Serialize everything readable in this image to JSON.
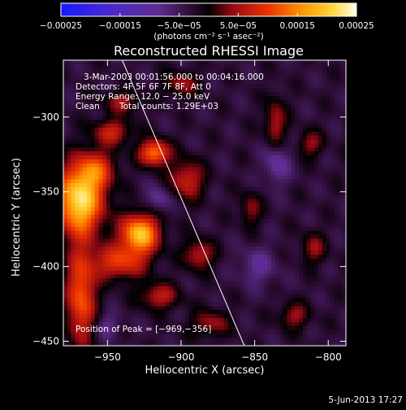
{
  "chart_data": {
    "type": "heatmap",
    "title": "Reconstructed RHESSI Image",
    "xlabel": "Heliocentric X (arcsec)",
    "ylabel": "Heliocentric Y (arcsec)",
    "xlim": [
      -980,
      -788
    ],
    "ylim": [
      -453,
      -262
    ],
    "xticks": [
      {
        "value": -950,
        "label": "−950"
      },
      {
        "value": -900,
        "label": "−900"
      },
      {
        "value": -850,
        "label": "−850"
      },
      {
        "value": -800,
        "label": "−800"
      }
    ],
    "yticks": [
      {
        "value": -300,
        "label": "−300"
      },
      {
        "value": -350,
        "label": "−350"
      },
      {
        "value": -400,
        "label": "−400"
      },
      {
        "value": -450,
        "label": "−450"
      }
    ],
    "colorbar": {
      "range": [
        -0.00025,
        0.00025
      ],
      "ticks": [
        {
          "value": -0.00025,
          "label": "−0.00025"
        },
        {
          "value": -0.00015,
          "label": "−0.00015"
        },
        {
          "value": -5e-05,
          "label": "−5.0e−05"
        },
        {
          "value": 5e-05,
          "label": "5.0e−05"
        },
        {
          "value": 0.00015,
          "label": "0.00015"
        },
        {
          "value": 0.00025,
          "label": "0.00025"
        }
      ],
      "unit_label": "(photons cm⁻² s⁻¹ asec⁻²)"
    },
    "limb_line": [
      [
        -940,
        -262
      ],
      [
        -857,
        -453
      ]
    ],
    "peak": {
      "x": -969,
      "y": -356
    },
    "blobs": [
      {
        "x": -969,
        "y": -356,
        "sx": 11,
        "sy": 16,
        "a": 1.0
      },
      {
        "x": -958,
        "y": -335,
        "sx": 9,
        "sy": 9,
        "a": 0.45
      },
      {
        "x": -928,
        "y": -378,
        "sx": 9,
        "sy": 9,
        "a": 0.9
      },
      {
        "x": -947,
        "y": -310,
        "sx": 9,
        "sy": 6,
        "a": 0.4
      },
      {
        "x": -918,
        "y": -324,
        "sx": 7,
        "sy": 6,
        "a": 0.7
      },
      {
        "x": -942,
        "y": -397,
        "sx": 13,
        "sy": 8,
        "a": 0.5
      },
      {
        "x": -968,
        "y": -420,
        "sx": 7,
        "sy": 22,
        "a": 0.6
      },
      {
        "x": -915,
        "y": -420,
        "sx": 9,
        "sy": 6,
        "a": 0.38
      },
      {
        "x": -896,
        "y": -342,
        "sx": 8,
        "sy": 9,
        "a": 0.42
      },
      {
        "x": -888,
        "y": -392,
        "sx": 7,
        "sy": 7,
        "a": 0.38
      },
      {
        "x": -880,
        "y": -438,
        "sx": 9,
        "sy": 6,
        "a": 0.3
      },
      {
        "x": -836,
        "y": -305,
        "sx": 5,
        "sy": 12,
        "a": 0.35
      },
      {
        "x": -812,
        "y": -318,
        "sx": 6,
        "sy": 6,
        "a": 0.28
      },
      {
        "x": -810,
        "y": -388,
        "sx": 6,
        "sy": 7,
        "a": 0.28
      },
      {
        "x": -823,
        "y": -433,
        "sx": 7,
        "sy": 6,
        "a": 0.3
      },
      {
        "x": -853,
        "y": -362,
        "sx": 5,
        "sy": 8,
        "a": 0.27
      },
      {
        "x": -900,
        "y": -278,
        "sx": 8,
        "sy": 6,
        "a": 0.3
      },
      {
        "x": -940,
        "y": -290,
        "sx": 8,
        "sy": 5,
        "a": 0.32
      },
      {
        "x": -835,
        "y": -330,
        "sx": 6,
        "sy": 10,
        "a": -0.3
      },
      {
        "x": -848,
        "y": -400,
        "sx": 9,
        "sy": 9,
        "a": -0.22
      },
      {
        "x": -915,
        "y": -355,
        "sx": 6,
        "sy": 6,
        "a": -0.25
      },
      {
        "x": -950,
        "y": -440,
        "sx": 6,
        "sy": 6,
        "a": -0.2
      }
    ]
  },
  "overlay": {
    "time_range": "3-Mar-2003 00:01:56.000 to 00:04:16.000",
    "detectors": "Detectors: 4F 5F 6F 7F 8F, Att 0",
    "energy_range": "Energy Range: 12.0 − 25.0 keV",
    "clean": "Clean",
    "total_counts": "Total counts: 1.29E+03",
    "peak_position": "Position of Peak = [−969,−356]"
  },
  "footer": {
    "timestamp": "5-Jun-2013 17:27"
  },
  "colors": {
    "background": "#000000",
    "foreground": "#ffffff"
  }
}
